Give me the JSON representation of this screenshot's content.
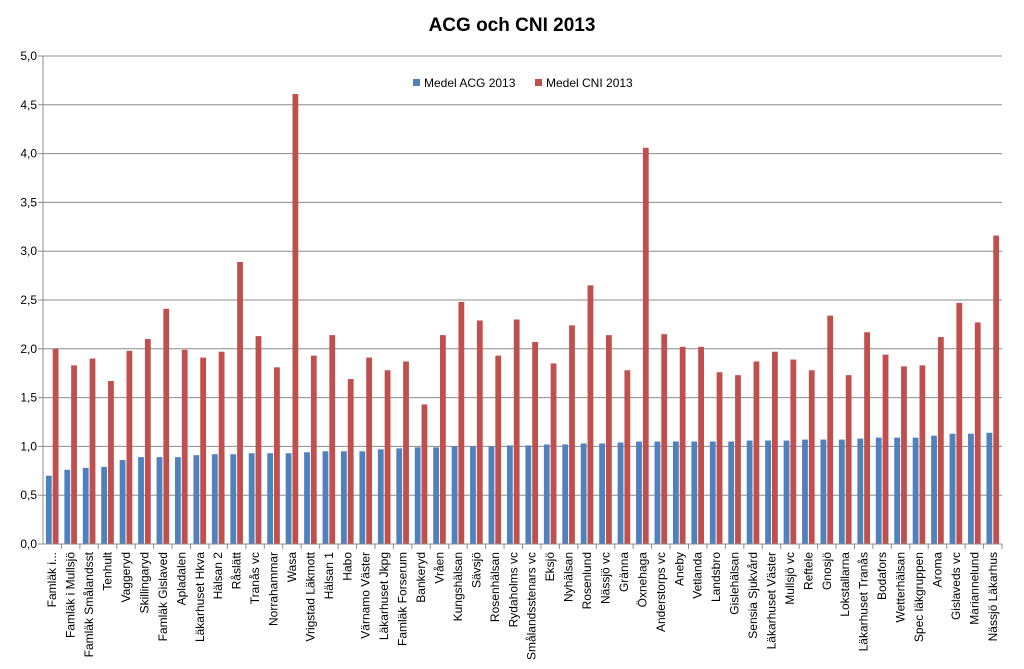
{
  "chart_data": {
    "type": "bar",
    "title": "ACG och CNI 2013",
    "xlabel": "",
    "ylabel": "",
    "ylim": [
      0,
      5
    ],
    "yticks": [
      "0,0",
      "0,5",
      "1,0",
      "1,5",
      "2,0",
      "2,5",
      "3,0",
      "3,5",
      "4,0",
      "4,5",
      "5,0"
    ],
    "grid": true,
    "legend_position": "top-center",
    "categories": [
      "Famläk i...",
      "Famläk i Mullsjö",
      "Famläk Smålandsst",
      "Tenhult",
      "Vaggeryd",
      "Skillingaryd",
      "Famläk Gislaved",
      "Apladalen",
      "Läkarhuset Hkva",
      "Hälsan 2",
      "Råslätt",
      "Tranås vc",
      "Norrahammar",
      "Wasa",
      "Vrigstad Läkmott",
      "Hälsan 1",
      "Habo",
      "Värnamo Väster",
      "Läkarhuset Jkpg",
      "Famläk Forserum",
      "Bankeryd",
      "Vråen",
      "Kungshälsan",
      "Sävsjö",
      "Rosenhälsan",
      "Rydaholms vc",
      "Smålandsstenars vc",
      "Eksjö",
      "Nyhälsan",
      "Rosenlund",
      "Nässjö vc",
      "Gränna",
      "Öxnehaga",
      "Anderstorps vc",
      "Aneby",
      "Vetlanda",
      "Landsbro",
      "Gislehälsan",
      "Sensia Sjukvård",
      "Läkarhuset Väster",
      "Mullsjö vc",
      "Reftele",
      "Gnosjö",
      "Lokstallarna",
      "Läkarhuset Tranås",
      "Bodafors",
      "Wetterhälsan",
      "Spec läkgruppen",
      "Aroma",
      "Gislaveds vc",
      "Mariannelund",
      "Nässjö Läkarhus"
    ],
    "series": [
      {
        "name": "Medel ACG 2013",
        "color": "#4f81bd",
        "values": [
          0.7,
          0.76,
          0.78,
          0.79,
          0.86,
          0.89,
          0.89,
          0.89,
          0.91,
          0.92,
          0.92,
          0.93,
          0.93,
          0.93,
          0.94,
          0.95,
          0.95,
          0.95,
          0.97,
          0.98,
          0.99,
          0.99,
          1.0,
          1.0,
          1.0,
          1.01,
          1.01,
          1.02,
          1.02,
          1.03,
          1.03,
          1.04,
          1.05,
          1.05,
          1.05,
          1.05,
          1.05,
          1.05,
          1.06,
          1.06,
          1.06,
          1.07,
          1.07,
          1.07,
          1.08,
          1.09,
          1.09,
          1.09,
          1.11,
          1.13,
          1.13,
          1.14
        ]
      },
      {
        "name": "Medel CNI 2013",
        "color": "#c0504d",
        "values": [
          2.0,
          1.83,
          1.9,
          1.67,
          1.98,
          2.1,
          2.41,
          1.99,
          1.91,
          1.97,
          2.89,
          2.13,
          1.81,
          4.61,
          1.93,
          2.14,
          1.69,
          1.91,
          1.78,
          1.87,
          1.43,
          2.14,
          2.48,
          2.29,
          1.93,
          2.3,
          2.07,
          1.85,
          2.24,
          2.65,
          2.14,
          1.78,
          4.06,
          2.15,
          2.02,
          2.02,
          1.76,
          1.73,
          1.87,
          1.97,
          1.89,
          1.78,
          2.34,
          1.73,
          2.17,
          1.94,
          1.82,
          1.83,
          2.12,
          2.47,
          2.27,
          3.16
        ]
      }
    ]
  }
}
